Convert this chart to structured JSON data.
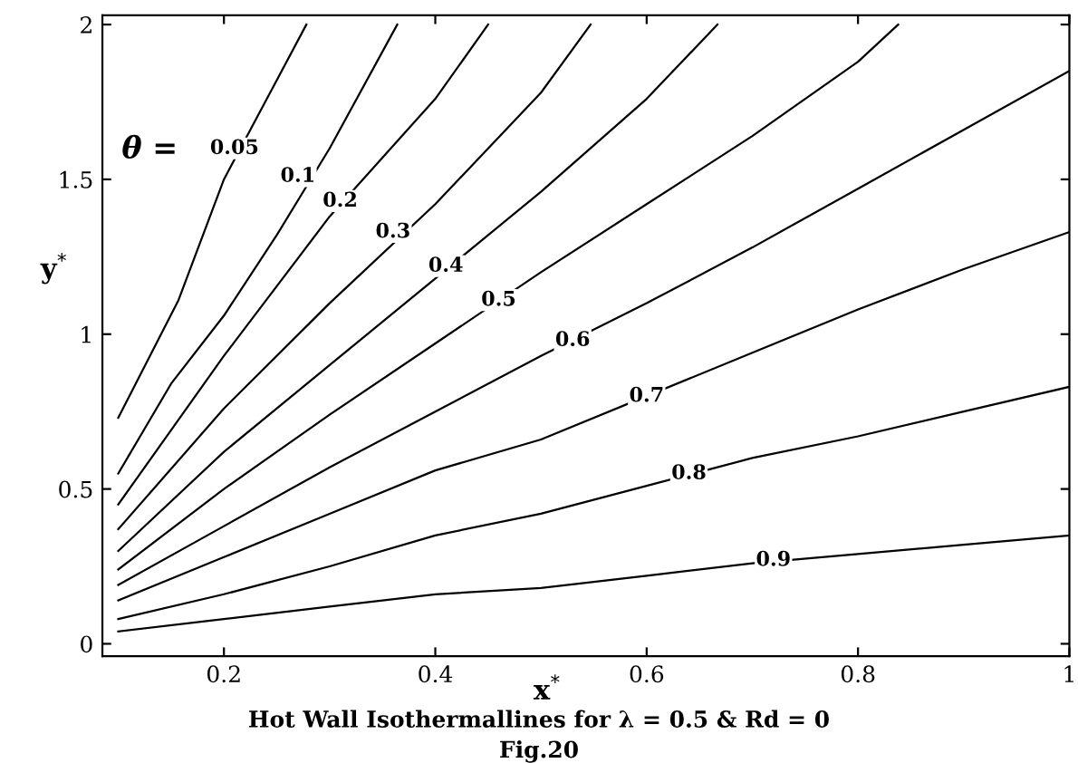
{
  "chart_data": {
    "type": "line",
    "xlabel": "x$^{*}$",
    "ylabel": "y$^{*}$",
    "xlim": [
      0.085,
      1.0
    ],
    "ylim": [
      -0.04,
      2.03
    ],
    "xticks": [
      0.2,
      0.4,
      0.6,
      0.8,
      1
    ],
    "yticks": [
      0,
      0.5,
      1,
      1.5,
      2
    ],
    "marker": "none",
    "line_style": "solid",
    "series": [
      {
        "color": "#000000",
        "x": [
          0.1,
          0.157,
          0.2,
          0.25,
          0.278
        ],
        "values": [
          0.73,
          1.11,
          1.5,
          1.82,
          2.0
        ]
      },
      {
        "color": "#000000",
        "x": [
          0.1,
          0.15,
          0.2,
          0.25,
          0.3,
          0.364
        ],
        "values": [
          0.55,
          0.84,
          1.06,
          1.32,
          1.6,
          2.0
        ]
      },
      {
        "color": "#000000",
        "x": [
          0.1,
          0.2,
          0.3,
          0.4,
          0.45
        ],
        "values": [
          0.45,
          0.93,
          1.38,
          1.76,
          2.0
        ]
      },
      {
        "color": "#000000",
        "x": [
          0.1,
          0.2,
          0.3,
          0.4,
          0.5,
          0.547
        ],
        "values": [
          0.37,
          0.76,
          1.1,
          1.42,
          1.78,
          2.0
        ]
      },
      {
        "color": "#000000",
        "x": [
          0.1,
          0.2,
          0.3,
          0.4,
          0.5,
          0.6,
          0.667
        ],
        "values": [
          0.3,
          0.62,
          0.9,
          1.18,
          1.46,
          1.76,
          2.0
        ]
      },
      {
        "color": "#000000",
        "x": [
          0.1,
          0.2,
          0.3,
          0.4,
          0.5,
          0.6,
          0.7,
          0.8,
          0.838
        ],
        "values": [
          0.24,
          0.5,
          0.74,
          0.97,
          1.2,
          1.42,
          1.64,
          1.88,
          2.0
        ]
      },
      {
        "color": "#000000",
        "x": [
          0.1,
          0.2,
          0.3,
          0.4,
          0.5,
          0.6,
          0.7,
          0.8,
          0.9,
          1.0
        ],
        "values": [
          0.19,
          0.38,
          0.57,
          0.75,
          0.93,
          1.1,
          1.28,
          1.47,
          1.66,
          1.85
        ]
      },
      {
        "color": "#000000",
        "x": [
          0.1,
          0.2,
          0.3,
          0.4,
          0.5,
          0.6,
          0.7,
          0.8,
          0.9,
          1.0
        ],
        "values": [
          0.14,
          0.28,
          0.42,
          0.56,
          0.66,
          0.8,
          0.94,
          1.08,
          1.21,
          1.33
        ]
      },
      {
        "color": "#000000",
        "x": [
          0.1,
          0.2,
          0.3,
          0.4,
          0.5,
          0.6,
          0.7,
          0.8,
          0.9,
          1.0
        ],
        "values": [
          0.08,
          0.16,
          0.25,
          0.35,
          0.42,
          0.51,
          0.6,
          0.67,
          0.75,
          0.83
        ]
      },
      {
        "color": "#000000",
        "x": [
          0.1,
          0.2,
          0.3,
          0.4,
          0.5,
          0.6,
          0.7,
          0.8,
          0.9,
          1.0
        ],
        "values": [
          0.04,
          0.08,
          0.12,
          0.16,
          0.18,
          0.22,
          0.26,
          0.29,
          0.32,
          0.35
        ]
      }
    ],
    "annotations": [
      "θ =",
      {
        "text": "0.05",
        "x": 0.21,
        "y": 1.6
      },
      {
        "text": "0.1",
        "x": 0.27,
        "y": 1.51
      },
      {
        "text": "0.2",
        "x": 0.31,
        "y": 1.43
      },
      {
        "text": "0.3",
        "x": 0.36,
        "y": 1.33
      },
      {
        "text": "0.4",
        "x": 0.41,
        "y": 1.22
      },
      {
        "text": "0.5",
        "x": 0.46,
        "y": 1.11
      },
      {
        "text": "0.6",
        "x": 0.53,
        "y": 0.98
      },
      {
        "text": "0.7",
        "x": 0.6,
        "y": 0.8
      },
      {
        "text": "0.8",
        "x": 0.64,
        "y": 0.55
      },
      {
        "text": "0.9",
        "x": 0.72,
        "y": 0.27
      },
      "Hot Wall Isothermallines for λ = 0.5 & Rd = 0",
      "Fig.20"
    ]
  }
}
